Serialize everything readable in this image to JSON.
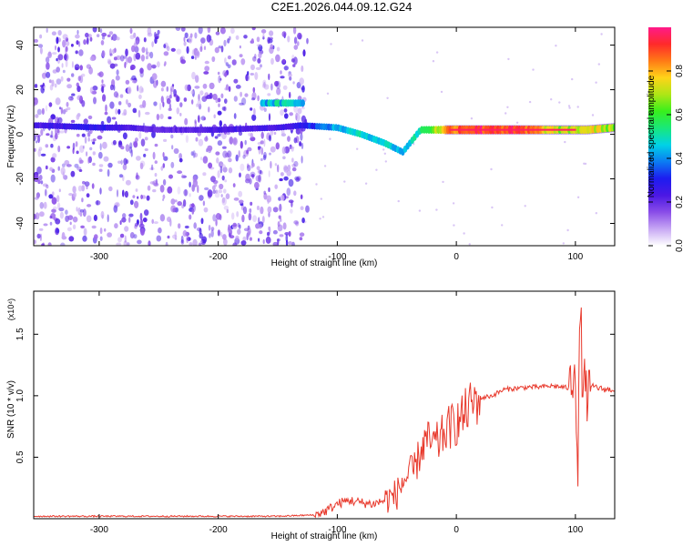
{
  "title": "C2E1.2026.044.09.12.G24",
  "colors": {
    "snr_line": "#e8392c",
    "axis": "#000000",
    "noise_dot": "#5b1ae6",
    "background": "#ffffff"
  },
  "chart_data": [
    {
      "type": "heatmap",
      "title": "",
      "xlabel": "Height of straight line (km)",
      "ylabel": "Frequency (Hz)",
      "xlim": [
        -355,
        133
      ],
      "ylim": [
        -50,
        48
      ],
      "x_ticks": [
        "-300",
        "-200",
        "-100",
        "0",
        "100"
      ],
      "x_tick_values": [
        -300,
        -200,
        -100,
        0,
        100
      ],
      "y_ticks": [
        "-40",
        "-20",
        "0",
        "20",
        "40"
      ],
      "y_tick_values": [
        -40,
        -20,
        0,
        20,
        40
      ],
      "colorbar": {
        "label": "Normalized spectral amplitude",
        "range": [
          0.0,
          1.0
        ],
        "ticks": [
          "0.0",
          "0.2",
          "0.4",
          "0.6",
          "0.8"
        ],
        "tick_values": [
          0.0,
          0.2,
          0.4,
          0.6,
          0.8
        ],
        "colormap": [
          "#ffffff",
          "#c7a7f4",
          "#8a4de8",
          "#4b18e4",
          "#1d1cf0",
          "#0b7cf2",
          "#00d2e6",
          "#19e87a",
          "#38ef1c",
          "#aee616",
          "#ffd419",
          "#ff7a16",
          "#ff2a2a",
          "#ff1a8a"
        ]
      },
      "ridge": {
        "x": [
          -350,
          -300,
          -275,
          -250,
          -200,
          -150,
          -130,
          -100,
          -80,
          -60,
          -45,
          -30,
          -15,
          0,
          30,
          60,
          90,
          100,
          110,
          133
        ],
        "frequency": [
          4,
          3,
          3,
          2,
          2,
          3,
          4,
          3,
          0,
          -4,
          -8,
          2,
          2,
          2,
          2,
          2,
          2,
          2,
          2,
          3
        ],
        "amplitude": [
          0.25,
          0.3,
          0.25,
          0.2,
          0.25,
          0.25,
          0.3,
          0.45,
          0.5,
          0.5,
          0.45,
          0.55,
          0.75,
          0.95,
          0.98,
          0.9,
          0.7,
          0.75,
          0.8,
          0.7
        ]
      },
      "secondary_band": {
        "x": [
          -163,
          -128
        ],
        "frequency": 14,
        "amplitude": 0.45
      },
      "noise_region": {
        "x": [
          -355,
          -125
        ],
        "frequency": [
          -50,
          48
        ],
        "amplitude": 0.2
      }
    },
    {
      "type": "line",
      "title": "",
      "xlabel": "Height of straight line (km)",
      "ylabel": "SNR (10 * v/v)",
      "y_multiplier": "(x10⁴)",
      "xlim": [
        -355,
        133
      ],
      "ylim": [
        0,
        1.85
      ],
      "x_ticks": [
        "-300",
        "-200",
        "-100",
        "0",
        "100"
      ],
      "x_tick_values": [
        -300,
        -200,
        -100,
        0,
        100
      ],
      "y_ticks": [
        "0.5",
        "1.0",
        "1.5"
      ],
      "y_tick_values": [
        0.5,
        1.0,
        1.5
      ],
      "series": [
        {
          "x": [
            -355,
            -300,
            -250,
            -200,
            -150,
            -120,
            -110,
            -100,
            -90,
            -80,
            -70,
            -60,
            -50,
            -45,
            -40,
            -35,
            -30,
            -25,
            -20,
            -15,
            -10,
            -5,
            0,
            5,
            10,
            15,
            20,
            30,
            40,
            50,
            60,
            70,
            80,
            90,
            95,
            100,
            102,
            104,
            106,
            110,
            115,
            120,
            125,
            133
          ],
          "y": [
            0.02,
            0.02,
            0.02,
            0.02,
            0.02,
            0.03,
            0.06,
            0.12,
            0.15,
            0.13,
            0.12,
            0.15,
            0.2,
            0.3,
            0.35,
            0.4,
            0.55,
            0.65,
            0.6,
            0.62,
            0.7,
            0.75,
            0.78,
            0.82,
            0.9,
            0.95,
            0.98,
            1.0,
            1.05,
            1.06,
            1.07,
            1.07,
            1.08,
            1.07,
            1.06,
            1.3,
            0.2,
            1.8,
            1.1,
            1.0,
            1.08,
            1.06,
            1.05,
            1.05
          ]
        }
      ]
    }
  ]
}
